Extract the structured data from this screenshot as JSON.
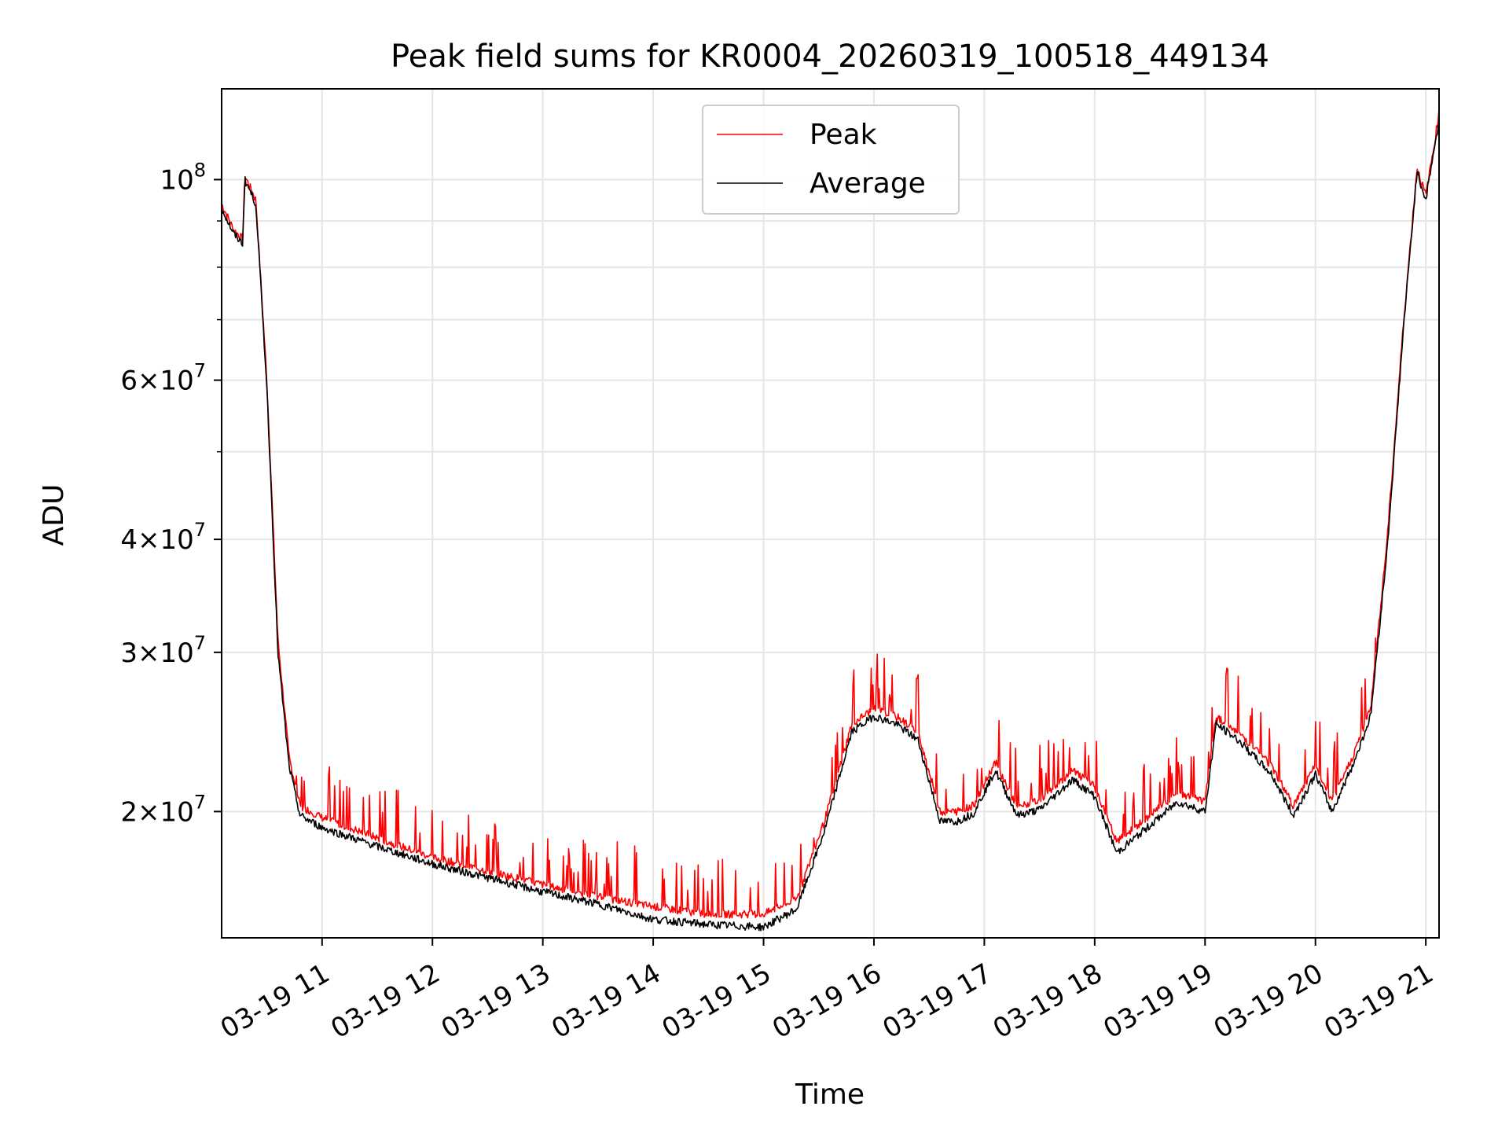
{
  "chart_data": {
    "type": "line",
    "title": "Peak field sums for KR0004_20260319_100518_449134",
    "xlabel": "Time",
    "ylabel": "ADU",
    "yscale": "log",
    "ylim": [
      14500000,
      126000000
    ],
    "xlim_hours": [
      10.09,
      21.12
    ],
    "grid": true,
    "legend_position": "upper-center",
    "x_ticks": [
      {
        "hour": 11,
        "label": "03-19 11"
      },
      {
        "hour": 12,
        "label": "03-19 12"
      },
      {
        "hour": 13,
        "label": "03-19 13"
      },
      {
        "hour": 14,
        "label": "03-19 14"
      },
      {
        "hour": 15,
        "label": "03-19 15"
      },
      {
        "hour": 16,
        "label": "03-19 16"
      },
      {
        "hour": 17,
        "label": "03-19 17"
      },
      {
        "hour": 18,
        "label": "03-19 18"
      },
      {
        "hour": 19,
        "label": "03-19 19"
      },
      {
        "hour": 20,
        "label": "03-19 20"
      },
      {
        "hour": 21,
        "label": "03-19 21"
      }
    ],
    "y_ticks": [
      {
        "value": 20000000,
        "mantissa": "2",
        "exponent": "7"
      },
      {
        "value": 30000000,
        "mantissa": "3",
        "exponent": "7"
      },
      {
        "value": 40000000,
        "mantissa": "4",
        "exponent": "7"
      },
      {
        "value": 60000000,
        "mantissa": "6",
        "exponent": "7"
      },
      {
        "value": 100000000,
        "mantissa": "",
        "exponent": "8"
      }
    ],
    "y_minor_ticks": [
      50000000,
      70000000,
      80000000,
      90000000
    ],
    "series": [
      {
        "name": "Peak",
        "color": "#ff0000",
        "description": "upper envelope of Average with frequent spikes",
        "hours": [
          10.09,
          10.2,
          10.28,
          10.3,
          10.4,
          10.5,
          10.6,
          10.7,
          10.8,
          11.0,
          11.5,
          12.0,
          12.5,
          13.0,
          13.5,
          14.0,
          14.5,
          15.0,
          15.3,
          15.55,
          15.8,
          16.0,
          16.2,
          16.4,
          16.6,
          16.75,
          16.9,
          17.1,
          17.3,
          17.5,
          17.8,
          18.0,
          18.2,
          18.5,
          18.75,
          19.0,
          19.1,
          19.3,
          19.6,
          19.8,
          20.0,
          20.15,
          20.35,
          20.5,
          20.65,
          20.8,
          20.92,
          21.0,
          21.08,
          21.12
        ],
        "values": [
          94000000,
          88000000,
          86000000,
          101000000,
          95000000,
          60000000,
          31000000,
          23000000,
          20300000,
          19700000,
          18700000,
          17800000,
          17200000,
          16600000,
          16100000,
          15700000,
          15400000,
          15400000,
          16000000,
          19500000,
          25000000,
          26000000,
          25500000,
          24500000,
          20000000,
          20000000,
          20300000,
          22700000,
          20200000,
          20600000,
          22200000,
          21300000,
          18500000,
          19800000,
          21000000,
          20500000,
          25500000,
          24500000,
          22500000,
          20300000,
          22500000,
          20500000,
          23200000,
          26000000,
          40000000,
          70000000,
          103000000,
          96000000,
          110000000,
          119000000
        ]
      },
      {
        "name": "Average",
        "color": "#000000",
        "hours": [
          10.09,
          10.2,
          10.28,
          10.3,
          10.4,
          10.5,
          10.6,
          10.7,
          10.8,
          11.0,
          11.5,
          12.0,
          12.5,
          13.0,
          13.5,
          14.0,
          14.5,
          15.0,
          15.3,
          15.55,
          15.8,
          16.0,
          16.2,
          16.4,
          16.6,
          16.75,
          16.9,
          17.1,
          17.3,
          17.5,
          17.8,
          18.0,
          18.2,
          18.5,
          18.75,
          19.0,
          19.1,
          19.3,
          19.6,
          19.8,
          20.0,
          20.15,
          20.35,
          20.5,
          20.65,
          20.8,
          20.92,
          21.0,
          21.08,
          21.12
        ],
        "values": [
          93000000,
          87000000,
          85000000,
          100000000,
          94000000,
          59000000,
          30000000,
          22500000,
          19800000,
          19200000,
          18300000,
          17500000,
          16900000,
          16300000,
          15800000,
          15200000,
          15000000,
          14900000,
          15600000,
          19000000,
          24500000,
          25500000,
          25000000,
          24000000,
          19500000,
          19500000,
          19900000,
          22200000,
          19800000,
          20100000,
          21700000,
          20800000,
          18000000,
          19300000,
          20500000,
          20000000,
          25000000,
          24000000,
          22000000,
          19800000,
          22000000,
          20000000,
          22700000,
          25500000,
          39000000,
          69000000,
          102000000,
          95000000,
          109000000,
          115000000
        ]
      }
    ]
  }
}
